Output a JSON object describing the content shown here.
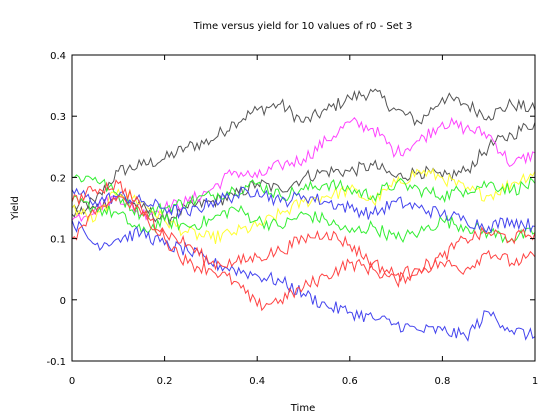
{
  "chart_data": {
    "type": "line",
    "title": "Time versus yield for 10 values of r0 - Set 3",
    "xlabel": "Time",
    "ylabel": "Yield",
    "xlim": [
      0,
      1
    ],
    "ylim": [
      -0.1,
      0.4
    ],
    "x_ticks": [
      "0",
      "0.2",
      "0.4",
      "0.6",
      "0.8",
      "1"
    ],
    "y_ticks": [
      "-0.1",
      "0",
      "0.1",
      "0.2",
      "0.3",
      "0.4"
    ],
    "grid": false,
    "legend": "none",
    "x": [
      0,
      0.05,
      0.1,
      0.15,
      0.2,
      0.25,
      0.3,
      0.35,
      0.4,
      0.45,
      0.5,
      0.55,
      0.6,
      0.65,
      0.7,
      0.75,
      0.8,
      0.85,
      0.9,
      0.95,
      1
    ],
    "series": [
      {
        "color": "#555555",
        "values": [
          0.15,
          0.16,
          0.21,
          0.22,
          0.23,
          0.25,
          0.26,
          0.29,
          0.31,
          0.32,
          0.29,
          0.31,
          0.33,
          0.34,
          0.31,
          0.29,
          0.33,
          0.32,
          0.3,
          0.32,
          0.31
        ]
      },
      {
        "color": "#555555",
        "values": [
          0.14,
          0.15,
          0.17,
          0.15,
          0.13,
          0.15,
          0.16,
          0.17,
          0.19,
          0.18,
          0.2,
          0.21,
          0.21,
          0.22,
          0.2,
          0.21,
          0.2,
          0.21,
          0.25,
          0.27,
          0.29
        ]
      },
      {
        "color": "#ff44ff",
        "values": [
          0.13,
          0.15,
          0.17,
          0.14,
          0.15,
          0.16,
          0.18,
          0.21,
          0.2,
          0.22,
          0.23,
          0.26,
          0.29,
          0.28,
          0.24,
          0.26,
          0.29,
          0.28,
          0.27,
          0.22,
          0.24
        ]
      },
      {
        "color": "#ffff33",
        "values": [
          0.15,
          0.13,
          0.18,
          0.16,
          0.13,
          0.11,
          0.1,
          0.11,
          0.12,
          0.14,
          0.16,
          0.17,
          0.18,
          0.16,
          0.19,
          0.21,
          0.2,
          0.18,
          0.17,
          0.19,
          0.21
        ]
      },
      {
        "color": "#33ee33",
        "values": [
          0.2,
          0.2,
          0.17,
          0.14,
          0.15,
          0.16,
          0.17,
          0.18,
          0.19,
          0.17,
          0.18,
          0.19,
          0.18,
          0.17,
          0.19,
          0.18,
          0.17,
          0.18,
          0.19,
          0.18,
          0.19
        ]
      },
      {
        "color": "#33ee33",
        "values": [
          0.16,
          0.15,
          0.14,
          0.11,
          0.13,
          0.12,
          0.13,
          0.15,
          0.13,
          0.12,
          0.14,
          0.13,
          0.11,
          0.12,
          0.1,
          0.11,
          0.13,
          0.12,
          0.11,
          0.1,
          0.11
        ]
      },
      {
        "color": "#4444ee",
        "values": [
          0.18,
          0.16,
          0.17,
          0.16,
          0.15,
          0.14,
          0.16,
          0.17,
          0.18,
          0.16,
          0.17,
          0.16,
          0.15,
          0.14,
          0.16,
          0.15,
          0.14,
          0.13,
          0.12,
          0.13,
          0.12
        ]
      },
      {
        "color": "#4444ee",
        "values": [
          0.13,
          0.09,
          0.1,
          0.11,
          0.09,
          0.08,
          0.06,
          0.05,
          0.04,
          0.03,
          0.01,
          -0.01,
          -0.02,
          -0.03,
          -0.04,
          -0.05,
          -0.05,
          -0.06,
          -0.02,
          -0.05,
          -0.06
        ]
      },
      {
        "color": "#ff4444",
        "values": [
          0.1,
          0.14,
          0.17,
          0.14,
          0.11,
          0.09,
          0.06,
          0.06,
          0.07,
          0.08,
          0.1,
          0.11,
          0.09,
          0.06,
          0.04,
          0.05,
          0.07,
          0.1,
          0.11,
          0.1,
          0.11
        ]
      },
      {
        "color": "#ff4444",
        "values": [
          0.16,
          0.18,
          0.19,
          0.15,
          0.1,
          0.06,
          0.05,
          0.03,
          -0.01,
          0.0,
          0.02,
          0.04,
          0.06,
          0.05,
          0.03,
          0.05,
          0.06,
          0.05,
          0.08,
          0.06,
          0.07
        ]
      }
    ]
  }
}
